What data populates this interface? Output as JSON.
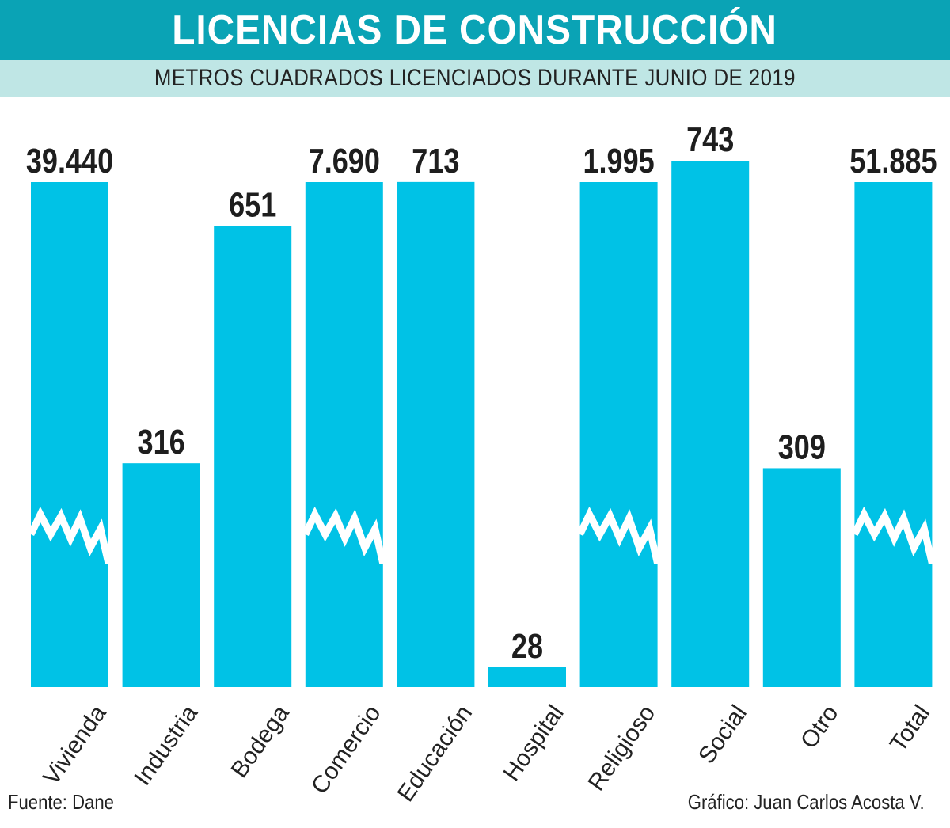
{
  "header": {
    "title": "LICENCIAS DE CONSTRUCCIÓN",
    "subtitle": "METROS CUADRADOS LICENCIADOS DURANTE JUNIO DE 2019"
  },
  "colors": {
    "bar": "#00c2e6",
    "title_bg": "#0aa3b5",
    "subtitle_bg": "#bfe6e5",
    "label": "#1e1e1e"
  },
  "chart_data": {
    "type": "bar",
    "title": "LICENCIAS DE CONSTRUCCIÓN",
    "subtitle": "METROS CUADRADOS LICENCIADOS DURANTE JUNIO DE 2019",
    "xlabel": "",
    "ylabel": "",
    "categories": [
      "Vivienda",
      "Industria",
      "Bodega",
      "Comercio",
      "Educación",
      "Hospital",
      "Religioso",
      "Social",
      "Otro",
      "Total"
    ],
    "values": [
      39440,
      316,
      651,
      7690,
      713,
      28,
      1995,
      743,
      309,
      51885
    ],
    "value_labels": [
      "39.440",
      "316",
      "651",
      "7.690",
      "713",
      "28",
      "1.995",
      "743",
      "309",
      "51.885"
    ],
    "broken_axis_bars": [
      "Vivienda",
      "Comercio",
      "Religioso",
      "Total"
    ],
    "ylim": [
      0,
      880
    ],
    "grid": false,
    "legend": "none"
  },
  "footer": {
    "source": "Fuente: Dane",
    "credit": "Gráfico: Juan Carlos Acosta V."
  }
}
